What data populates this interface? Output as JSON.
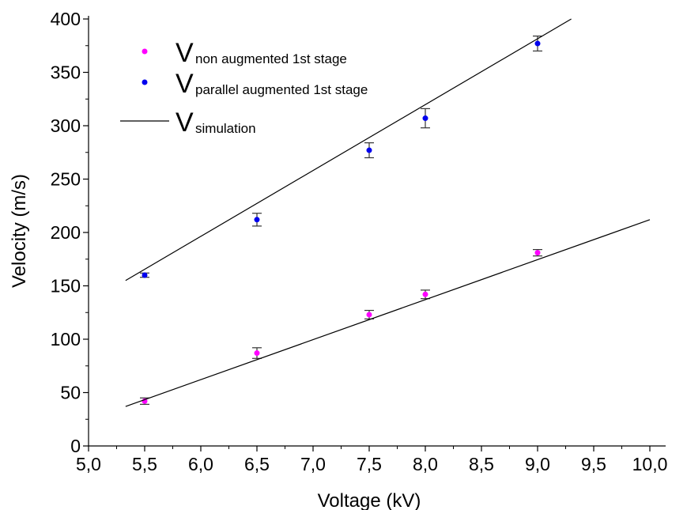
{
  "chart_data": {
    "type": "scatter",
    "title": "",
    "xlabel": "Voltage (kV)",
    "ylabel": "Velocity (m/s)",
    "xlim": [
      5.0,
      10.0
    ],
    "ylim": [
      0,
      400
    ],
    "xticks": [
      5.0,
      5.5,
      6.0,
      6.5,
      7.0,
      7.5,
      8.0,
      8.5,
      9.0,
      9.5,
      10.0
    ],
    "xtick_labels": [
      "5,0",
      "5,5",
      "6,0",
      "6,5",
      "7,0",
      "7,5",
      "8,0",
      "8,5",
      "9,0",
      "9,5",
      "10,0"
    ],
    "yticks": [
      0,
      50,
      100,
      150,
      200,
      250,
      300,
      350,
      400
    ],
    "ytick_labels": [
      "0",
      "50",
      "100",
      "150",
      "200",
      "250",
      "300",
      "350",
      "400"
    ],
    "grid": false,
    "legend_position": "top-left",
    "series": [
      {
        "name": "V",
        "subscript": "non augmented 1st stage",
        "kind": "scatter",
        "color": "#ff00ff",
        "points": [
          {
            "x": 5.5,
            "y": 42,
            "err": 3
          },
          {
            "x": 6.5,
            "y": 87,
            "err": 5
          },
          {
            "x": 7.5,
            "y": 123,
            "err": 4
          },
          {
            "x": 8.0,
            "y": 142,
            "err": 4
          },
          {
            "x": 9.0,
            "y": 181,
            "err": 3
          }
        ]
      },
      {
        "name": "V",
        "subscript": "parallel augmented 1st stage",
        "kind": "scatter",
        "color": "#0000ee",
        "points": [
          {
            "x": 5.5,
            "y": 160,
            "err": 2
          },
          {
            "x": 6.5,
            "y": 212,
            "err": 6
          },
          {
            "x": 7.5,
            "y": 277,
            "err": 7
          },
          {
            "x": 8.0,
            "y": 307,
            "err": 9
          },
          {
            "x": 9.0,
            "y": 377,
            "err": 7
          }
        ]
      },
      {
        "name": "V",
        "subscript": "simulation",
        "kind": "line",
        "color": "#000000",
        "segments": [
          [
            [
              5.33,
              155
            ],
            [
              9.3,
              400
            ]
          ],
          [
            [
              5.33,
              37
            ],
            [
              10.0,
              212
            ]
          ]
        ]
      }
    ]
  }
}
